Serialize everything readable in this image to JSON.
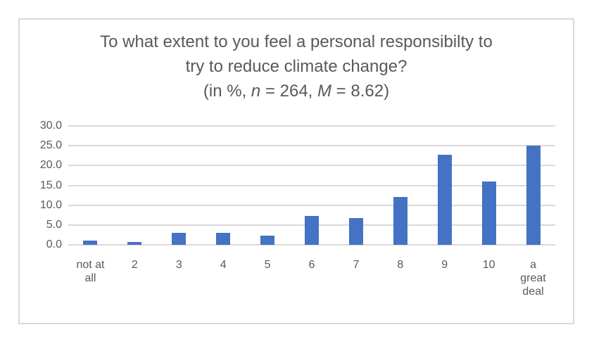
{
  "chart_data": {
    "type": "bar",
    "title_lines": [
      "To what extent to you feel a personal responsibilty to",
      "try to reduce climate change?"
    ],
    "subtitle_text": "(in %, n = 264, M = 8.62)",
    "subtitle_parts": [
      {
        "text": "(in %, ",
        "italic": false
      },
      {
        "text": "n",
        "italic": true
      },
      {
        "text": " = 264, ",
        "italic": false
      },
      {
        "text": "M",
        "italic": true
      },
      {
        "text": " = 8.62)",
        "italic": false
      }
    ],
    "categories": [
      {
        "id": "not-at-all",
        "lines": [
          "not at",
          "all"
        ]
      },
      {
        "id": "2",
        "lines": [
          "2"
        ]
      },
      {
        "id": "3",
        "lines": [
          "3"
        ]
      },
      {
        "id": "4",
        "lines": [
          "4"
        ]
      },
      {
        "id": "5",
        "lines": [
          "5"
        ]
      },
      {
        "id": "6",
        "lines": [
          "6"
        ]
      },
      {
        "id": "7",
        "lines": [
          "7"
        ]
      },
      {
        "id": "8",
        "lines": [
          "8"
        ]
      },
      {
        "id": "9",
        "lines": [
          "9"
        ]
      },
      {
        "id": "10",
        "lines": [
          "10"
        ]
      },
      {
        "id": "a-great-deal",
        "lines": [
          "a",
          "great",
          "deal"
        ]
      }
    ],
    "values": [
      1.1,
      0.8,
      3.0,
      3.0,
      2.3,
      7.2,
      6.8,
      12.1,
      22.7,
      15.9,
      25.0
    ],
    "ylabel": "",
    "xlabel": "",
    "yticks": [
      "0.0",
      "5.0",
      "10.0",
      "15.0",
      "20.0",
      "25.0",
      "30.0"
    ],
    "ylim": [
      0,
      30
    ],
    "grid": "horizontal",
    "legend": "none",
    "colors": {
      "bar": "#4472C4",
      "gridline": "#D9D9D9",
      "text": "#595959",
      "frame_border": "#D9D9D9"
    }
  }
}
